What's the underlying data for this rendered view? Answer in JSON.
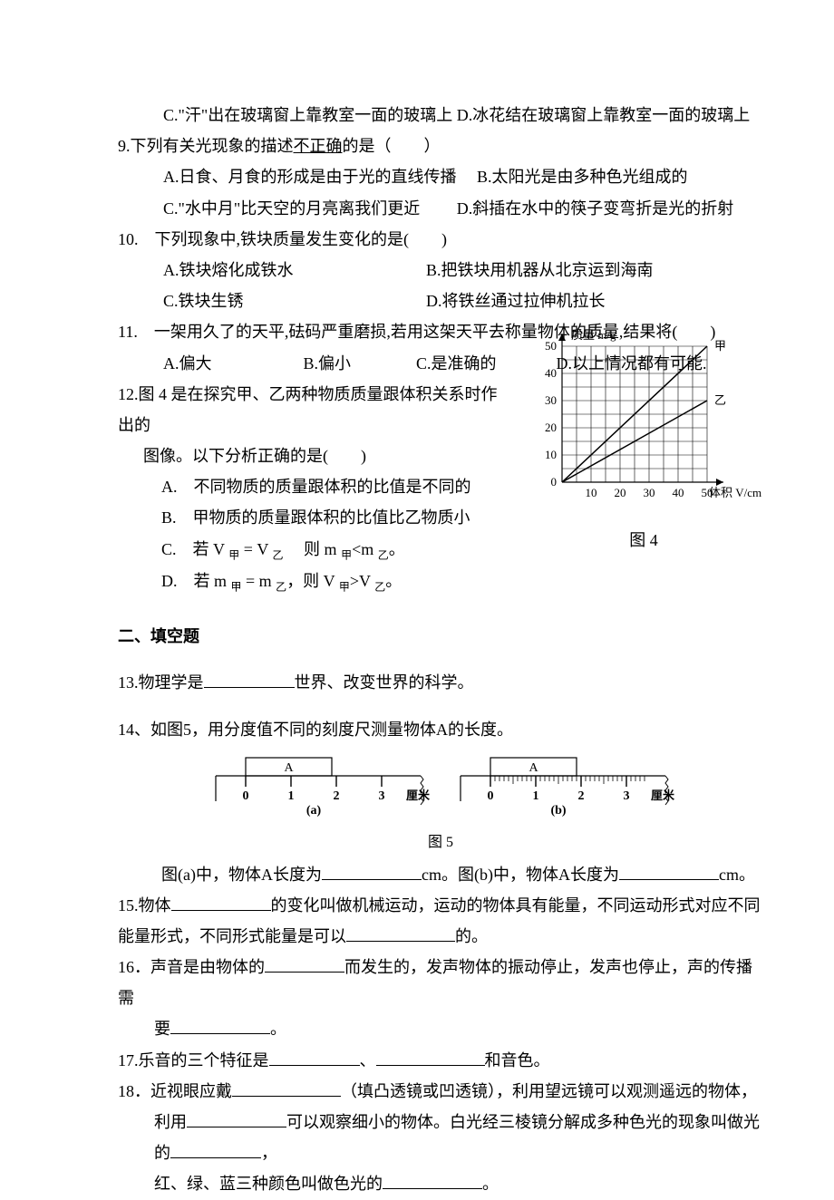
{
  "q8": {
    "optC": "C.\"汗\"出在玻璃窗上靠教室一面的玻璃上",
    "optD": "D.冰花结在玻璃窗上靠教室一面的玻璃上"
  },
  "q9": {
    "stem_pre": "9.下列有关光现象的描述",
    "stem_underline": "不正确",
    "stem_post": "的是（　　）",
    "optA": "A.日食、月食的形成是由于光的直线传播",
    "optB": "B.太阳光是由多种色光组成的",
    "optC": "C.\"水中月\"比天空的月亮离我们更近",
    "optD": "D.斜插在水中的筷子变弯折是光的折射"
  },
  "q10": {
    "stem": "10.　下列现象中,铁块质量发生变化的是(　　)",
    "optA": "A.铁块熔化成铁水",
    "optB": "B.把铁块用机器从北京运到海南",
    "optC": "C.铁块生锈",
    "optD": "D.将铁丝通过拉伸机拉长"
  },
  "q11": {
    "stem": "11.　一架用久了的天平,砝码严重磨损,若用这架天平去称量物体的质量,结果将(　　)",
    "optA": "A.偏大",
    "optB": "B.偏小",
    "optC": "C.是准确的",
    "optD": "D.以上情况都有可能."
  },
  "q12": {
    "stem1": "12.图 4 是在探究甲、乙两种物质质量跟体积关系时作出的",
    "stem2": "图像。以下分析正确的是(　　)",
    "optA": "A.　不同物质的质量跟体积的比值是不同的",
    "optB": "B.　甲物质的质量跟体积的比值比乙物质小",
    "optC_pre": "C.　若 V ",
    "optC_jia": "甲",
    "optC_mid1": " = V ",
    "optC_yi": "乙",
    "optC_mid2": "　 则 m ",
    "optC_mid3": "<m ",
    "optC_end": "。",
    "optD_pre": "D.　若 m ",
    "optD_mid1": " = m ",
    "optD_mid2": "，则 V ",
    "optD_mid3": ">V ",
    "optD_end": "。"
  },
  "fig4": {
    "caption": "图 4",
    "ylabel": "质量 m/g",
    "xlabel": "体积 V/cm³",
    "series_jia": "甲",
    "series_yi": "乙",
    "ylim": [
      0,
      50
    ],
    "xlim": [
      0,
      50
    ],
    "yticks": [
      0,
      10,
      20,
      30,
      40,
      50
    ],
    "xticks": [
      10,
      20,
      30,
      40,
      50
    ],
    "grid_color": "#000000",
    "line_color": "#000000",
    "bg_color": "#ffffff",
    "axis_width": 1.2,
    "font_size": 13,
    "jia_slope": 1.0,
    "yi_slope": 0.6
  },
  "section2": "二、填空题",
  "q13": {
    "pre": "13.物理学是",
    "post": "世界、改变世界的科学。"
  },
  "q14": {
    "stem": "14、如图5，用分度值不同的刻度尺测量物体A的长度。",
    "line2_a": "图(a)中，物体A长度为",
    "line2_b": "cm。图(b)中，物体A长度为",
    "line2_c": "cm。"
  },
  "fig5": {
    "caption": "图 5",
    "label_A": "A",
    "ruler_a_ticks": [
      "0",
      "1",
      "2",
      "3"
    ],
    "ruler_b_ticks": [
      "0",
      "1",
      "2",
      "3"
    ],
    "unit": "厘米",
    "sub_a": "(a)",
    "sub_b": "(b)",
    "line_color": "#000000",
    "font_size": 14
  },
  "q15": {
    "pre": "15.物体",
    "mid": "的变化叫做机械运动，运动的物体具有能量，不同运动形式对应不同",
    "line2_pre": "能量形式，不同形式能量是可以",
    "line2_post": "的。"
  },
  "q16": {
    "pre": "16．声音是由物体的",
    "mid": "而发生的，发声物体的振动停止，发声也停止，声的传播需",
    "line2_pre": "要",
    "line2_post": "。"
  },
  "q17": {
    "pre": "17.乐音的三个特征是",
    "mid": "、",
    "post": "和音色。"
  },
  "q18": {
    "pre": "18．近视眼应戴",
    "mid": "（填凸透镜或凹透镜），利用望远镜可以观测遥远的物体，",
    "line2_pre": "利用",
    "line2_mid": "可以观察细小的物体。白光经三棱镜分解成多种色光的现象叫做光的",
    "line2_post": "，",
    "line3_pre": "红、绿、蓝三种颜色叫做色光的",
    "line3_post": "。"
  }
}
